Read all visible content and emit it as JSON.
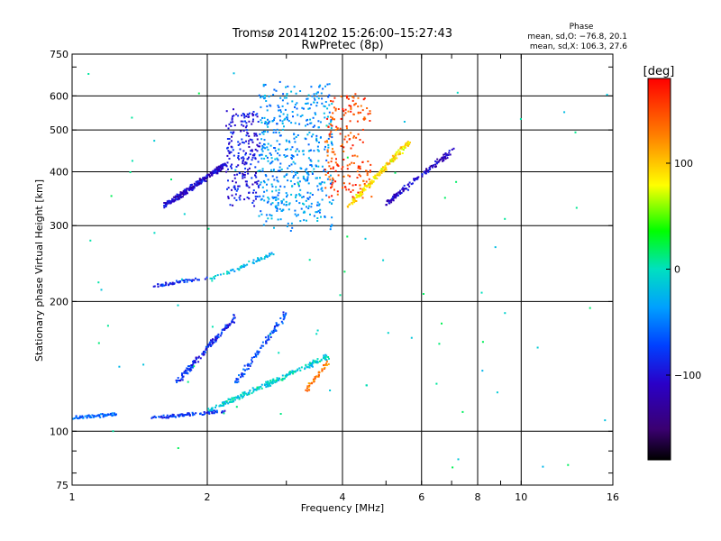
{
  "chart_data": {
    "type": "scatter",
    "title": "Tromsø 20141202 15:26:00–15:27:43",
    "subtitle": "RwPretec (8p)",
    "xlabel": "Frequency [MHz]",
    "ylabel": "Stationary phase Virtual Height [km]",
    "x_scale": "log",
    "y_scale": "log",
    "xlim": [
      1,
      16
    ],
    "ylim": [
      75,
      750
    ],
    "x_ticks": [
      1,
      2,
      4,
      6,
      8,
      10,
      16
    ],
    "x_tick_labels": [
      "1",
      "2",
      "4",
      "6",
      "8",
      "10",
      "16"
    ],
    "y_ticks": [
      75,
      100,
      200,
      300,
      400,
      500,
      600,
      750
    ],
    "y_tick_labels": [
      "75",
      "100",
      "200",
      "300",
      "400",
      "500",
      "600",
      "750"
    ],
    "grid": true,
    "phase_stats": {
      "heading": "Phase",
      "line_o": "mean, sd,O: −76.8, 20.1",
      "line_x": "mean, sd,X: 106.3, 27.6"
    },
    "colorbar": {
      "label": "[deg]",
      "range": [
        -180,
        180
      ],
      "ticks": [
        100,
        0,
        -100
      ],
      "tick_labels": [
        "100",
        "0",
        "−100"
      ],
      "colormap": "rainbow"
    },
    "clusters": [
      {
        "x": [
          1.0,
          1.25
        ],
        "y": [
          108,
          110
        ],
        "phase": -60,
        "n": 60,
        "spread": 0.02
      },
      {
        "x": [
          1.5,
          2.2
        ],
        "y": [
          108,
          112
        ],
        "phase": -80,
        "n": 90,
        "spread": 0.015
      },
      {
        "x": [
          2.0,
          3.7
        ],
        "y": [
          112,
          150
        ],
        "phase": -10,
        "n": 220,
        "spread": 0.06
      },
      {
        "x": [
          1.7,
          2.3
        ],
        "y": [
          130,
          185
        ],
        "phase": -85,
        "n": 140,
        "spread": 0.08
      },
      {
        "x": [
          2.3,
          3.0
        ],
        "y": [
          130,
          190
        ],
        "phase": -70,
        "n": 90,
        "spread": 0.08
      },
      {
        "x": [
          3.3,
          3.7
        ],
        "y": [
          125,
          145
        ],
        "phase": 130,
        "n": 40,
        "spread": 0.04
      },
      {
        "x": [
          1.5,
          2.0
        ],
        "y": [
          218,
          228
        ],
        "phase": -80,
        "n": 50,
        "spread": 0.02
      },
      {
        "x": [
          2.0,
          2.8
        ],
        "y": [
          225,
          260
        ],
        "phase": -20,
        "n": 60,
        "spread": 0.04
      },
      {
        "x": [
          1.6,
          2.2
        ],
        "y": [
          335,
          420
        ],
        "phase": -105,
        "n": 260,
        "spread": 0.08
      },
      {
        "x": [
          2.2,
          2.6
        ],
        "y": [
          340,
          560
        ],
        "phase": -95,
        "n": 220,
        "spread": 0.12
      },
      {
        "x": [
          2.6,
          3.8
        ],
        "y": [
          300,
          640
        ],
        "phase": -40,
        "n": 520,
        "spread": 0.2
      },
      {
        "x": [
          3.6,
          4.6
        ],
        "y": [
          350,
          600
        ],
        "phase": 150,
        "n": 200,
        "spread": 0.1
      },
      {
        "x": [
          4.1,
          5.6
        ],
        "y": [
          335,
          470
        ],
        "phase": 90,
        "n": 180,
        "spread": 0.08
      },
      {
        "x": [
          5.0,
          7.0
        ],
        "y": [
          340,
          450
        ],
        "phase": -110,
        "n": 140,
        "spread": 0.08
      },
      {
        "x": [
          1.0,
          16.0
        ],
        "y": [
          80,
          700
        ],
        "phase": 0,
        "n": 80,
        "spread": 1.0
      }
    ]
  }
}
